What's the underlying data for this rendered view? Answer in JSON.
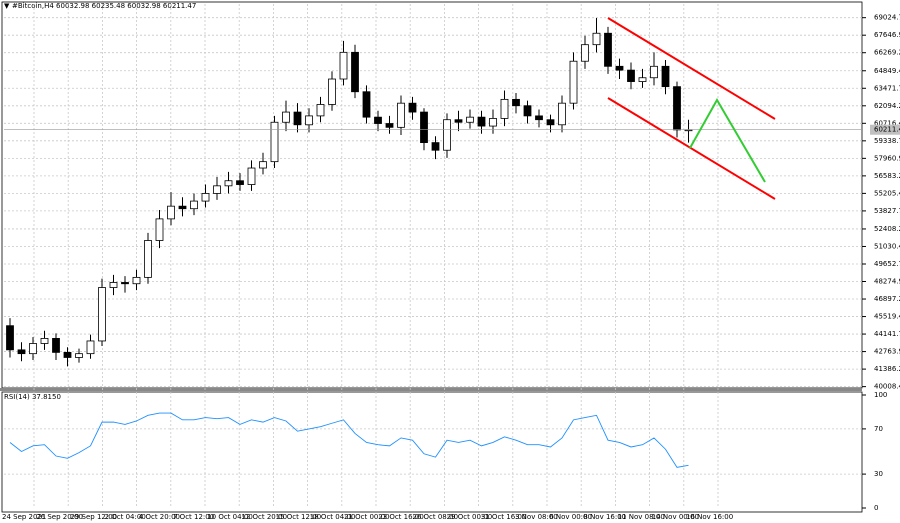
{
  "chart_data": [
    {
      "type": "candlestick",
      "title": "#Bitcoin,H4 60032.98 60235.48 60032.98 60211.47",
      "color": "#000000",
      "up_color": "#ffffff",
      "grid": true,
      "x_labels": [
        "24 Sep 2021",
        "26 Sep 20:00",
        "29 Sep 12:00",
        "2 Oct 04:00",
        "4 Oct 20:00",
        "7 Oct 12:00",
        "10 Oct 04:00",
        "12 Oct 20:00",
        "15 Oct 12:00",
        "18 Oct 04:00",
        "21 Oct 00:00",
        "23 Oct 16:00",
        "26 Oct 08:00",
        "29 Oct 00:00",
        "31 Oct 16:00",
        "3 Nov 08:00",
        "6 Nov 00:00",
        "8 Nov 16:00",
        "11 Nov 08:00",
        "14 Nov 00:00",
        "16 Nov 16:00"
      ],
      "open": [
        44800,
        42900,
        42600,
        43400,
        43800,
        42700,
        42300,
        42600,
        43600,
        47800,
        48200,
        48100,
        48600,
        51500,
        53200,
        54200,
        54000,
        54600,
        55200,
        55800,
        56200,
        55900,
        57200,
        57700,
        60800,
        61600,
        60600,
        61300,
        62200,
        64200,
        66300,
        63200,
        61200,
        60700,
        60400,
        62300,
        61600,
        59200,
        58600,
        61000,
        60800,
        61200,
        60500,
        61100,
        62600,
        62100,
        61300,
        61000,
        60600,
        62300,
        65600,
        66900,
        67800,
        65200,
        64900,
        64000,
        64300,
        65200,
        63600,
        60200
      ],
      "high": [
        45400,
        43500,
        43900,
        44400,
        44200,
        43100,
        43000,
        44100,
        48500,
        48800,
        48700,
        49200,
        52100,
        53900,
        55300,
        54900,
        55200,
        55900,
        56500,
        56900,
        56800,
        57800,
        58400,
        61300,
        62500,
        62300,
        61900,
        62800,
        64800,
        67200,
        66900,
        63700,
        61700,
        61300,
        62900,
        62800,
        61900,
        59700,
        61500,
        61700,
        61800,
        61700,
        61800,
        63300,
        63100,
        62500,
        61800,
        61400,
        62900,
        66300,
        67600,
        69000,
        68300,
        65800,
        65500,
        65000,
        66300,
        65700,
        64000,
        61000
      ],
      "low": [
        42300,
        42000,
        42100,
        42900,
        42100,
        41600,
        41900,
        42200,
        43200,
        47200,
        47400,
        47600,
        48100,
        50900,
        52700,
        53400,
        53500,
        54100,
        54700,
        55200,
        55400,
        55400,
        56700,
        57200,
        60100,
        60000,
        60000,
        60800,
        61700,
        63700,
        62700,
        60700,
        60100,
        59900,
        59800,
        61000,
        58600,
        57900,
        58000,
        60100,
        60300,
        59900,
        59900,
        60500,
        61500,
        60700,
        60400,
        60000,
        60000,
        61800,
        65000,
        66300,
        64600,
        64200,
        63400,
        63500,
        63700,
        63000,
        59600,
        59200
      ],
      "close": [
        42900,
        42600,
        43400,
        43800,
        42700,
        42300,
        42600,
        43600,
        47800,
        48200,
        48100,
        48600,
        51500,
        53200,
        54200,
        54000,
        54600,
        55200,
        55800,
        56200,
        55900,
        57200,
        57700,
        60800,
        61600,
        60600,
        61300,
        62200,
        64200,
        66300,
        63200,
        61200,
        60700,
        60400,
        62300,
        61600,
        59200,
        58600,
        61000,
        60800,
        61200,
        60500,
        61100,
        62600,
        62100,
        61300,
        61000,
        60600,
        62300,
        65600,
        66900,
        67800,
        65200,
        64900,
        64000,
        64300,
        65200,
        63600,
        60200,
        60211.47
      ],
      "last_price": 60211.47,
      "ylim": [
        39900,
        70100
      ],
      "yticks": [
        {
          "value": 69024.7,
          "label": "69024.70"
        },
        {
          "value": 67646.95,
          "label": "67646.95"
        },
        {
          "value": 66269.2,
          "label": "66269.20"
        },
        {
          "value": 64849.45,
          "label": "64849.45"
        },
        {
          "value": 63471.7,
          "label": "63471.70"
        },
        {
          "value": 62094.2,
          "label": "62094.20"
        },
        {
          "value": 60716.45,
          "label": "60716.45"
        },
        {
          "value": 59338.7,
          "label": "59338.70"
        },
        {
          "value": 57960.95,
          "label": "57960.95"
        },
        {
          "value": 56583.2,
          "label": "56583.20"
        },
        {
          "value": 55205.45,
          "label": "55205.45"
        },
        {
          "value": 53827.7,
          "label": "53827.70"
        },
        {
          "value": 52408.2,
          "label": "52408.20"
        },
        {
          "value": 51030.45,
          "label": "51030.45"
        },
        {
          "value": 49652.7,
          "label": "49652.70"
        },
        {
          "value": 48274.95,
          "label": "48274.95"
        },
        {
          "value": 46897.2,
          "label": "46897.20"
        },
        {
          "value": 45519.45,
          "label": "45519.45"
        },
        {
          "value": 44141.7,
          "label": "44141.70"
        },
        {
          "value": 42763.95,
          "label": "42763.95"
        },
        {
          "value": 41386.2,
          "label": "41386.20"
        },
        {
          "value": 40008.45,
          "label": "40008.45"
        }
      ]
    },
    {
      "type": "line",
      "title": "RSI(14) 37.8150",
      "color": "#1e90ff",
      "grid": true,
      "values": [
        58,
        50,
        55,
        56,
        46,
        44,
        49,
        55,
        76,
        76,
        74,
        77,
        82,
        84,
        84,
        78,
        78,
        80,
        79,
        80,
        74,
        78,
        76,
        80,
        77,
        68,
        70,
        72,
        75,
        78,
        66,
        58,
        56,
        55,
        62,
        60,
        48,
        45,
        60,
        58,
        60,
        55,
        58,
        63,
        60,
        56,
        56,
        54,
        62,
        78,
        80,
        82,
        60,
        58,
        54,
        56,
        62,
        52,
        36,
        37.815
      ],
      "ylim": [
        0,
        100
      ],
      "yticks": [
        100,
        70,
        30,
        0
      ]
    }
  ]
}
